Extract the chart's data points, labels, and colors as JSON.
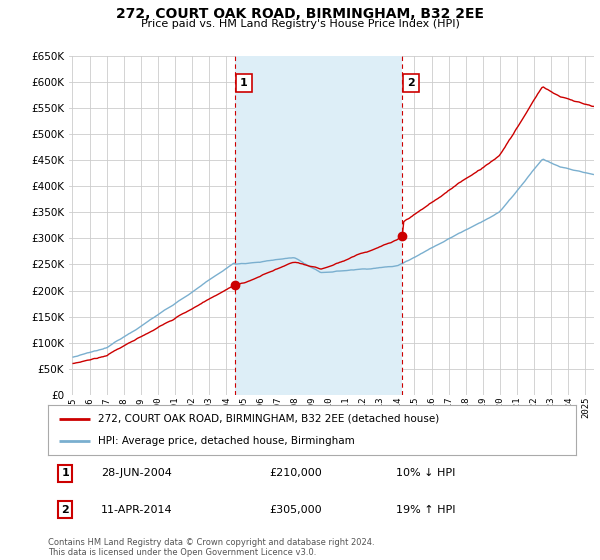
{
  "title": "272, COURT OAK ROAD, BIRMINGHAM, B32 2EE",
  "subtitle": "Price paid vs. HM Land Registry's House Price Index (HPI)",
  "legend_line1": "272, COURT OAK ROAD, BIRMINGHAM, B32 2EE (detached house)",
  "legend_line2": "HPI: Average price, detached house, Birmingham",
  "sale1_date": "28-JUN-2004",
  "sale1_price": "£210,000",
  "sale1_hpi": "10% ↓ HPI",
  "sale1_year": 2004.5,
  "sale1_value": 210000,
  "sale2_date": "11-APR-2014",
  "sale2_price": "£305,000",
  "sale2_hpi": "19% ↑ HPI",
  "sale2_year": 2014.28,
  "sale2_value": 305000,
  "footer": "Contains HM Land Registry data © Crown copyright and database right 2024.\nThis data is licensed under the Open Government Licence v3.0.",
  "red_color": "#cc0000",
  "blue_color": "#7aafcf",
  "blue_fill": "#ddeef7",
  "background_color": "#ffffff",
  "grid_color": "#cccccc",
  "ylim": [
    0,
    650000
  ],
  "yticks": [
    0,
    50000,
    100000,
    150000,
    200000,
    250000,
    300000,
    350000,
    400000,
    450000,
    500000,
    550000,
    600000,
    650000
  ],
  "xlim_start": 1994.8,
  "xlim_end": 2025.5
}
